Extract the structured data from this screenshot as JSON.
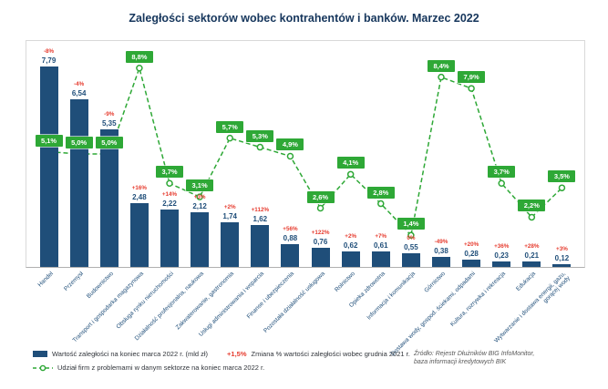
{
  "title": "Zaległości sektorów wobec kontrahentów i banków. Marzec 2022",
  "chart_data": {
    "type": "bar",
    "categories": [
      "Handel",
      "Przemysł",
      "Budownictwo",
      "Transport i gospodarka magazynowa",
      "Obsługa rynku nieruchomości",
      "Działalność profesjonalna, naukowa",
      "Zakwaterowanie, gastronomia",
      "Usługi administrowania i wsparcia",
      "Finanse i ubezpieczenia",
      "Pozostała działalność usługowa",
      "Rolnictwo",
      "Opieka zdrowotna",
      "Informacja i komunikacja",
      "Górnictwo",
      "Dostawa wody, gospod. ściekami, odpadami",
      "Kultura, rozrywka i rekreacja",
      "Edukacja",
      "Wytwarzanie i dostawa energii, gazu, gorącej wody"
    ],
    "series": [
      {
        "name": "Wartość zaległości na koniec marca 2022 r. (mld zł)",
        "type": "bar",
        "values": [
          7.79,
          6.54,
          5.35,
          2.48,
          2.22,
          2.12,
          1.74,
          1.62,
          0.88,
          0.76,
          0.62,
          0.61,
          0.55,
          0.38,
          0.28,
          0.23,
          0.21,
          0.12
        ],
        "labels": [
          "7,79",
          "6,54",
          "5,35",
          "2,48",
          "2,22",
          "2,12",
          "1,74",
          "1,62",
          "0,88",
          "0,76",
          "0,62",
          "0,61",
          "0,55",
          "0,38",
          "0,28",
          "0,23",
          "0,21",
          "0,12"
        ]
      },
      {
        "name": "Zmiana % wartości zaległości wobec grudnia 2021 r.",
        "type": "annotation",
        "labels": [
          "-8%",
          "-4%",
          "-9%",
          "+16%",
          "+14%",
          "+3%",
          "+2%",
          "+112%",
          "+56%",
          "+122%",
          "+2%",
          "+7%",
          "0%",
          "-49%",
          "+20%",
          "+36%",
          "+28%",
          "+3%"
        ]
      },
      {
        "name": "Udział firm z problemami w danym sektorze na koniec marca 2022 r.",
        "type": "line",
        "values": [
          5.1,
          5.0,
          5.0,
          8.8,
          3.7,
          3.1,
          5.7,
          5.3,
          4.9,
          2.6,
          4.1,
          2.8,
          1.4,
          8.4,
          7.9,
          3.7,
          2.2,
          3.5
        ],
        "labels": [
          "5,1%",
          "5,0%",
          "5,0%",
          "8,8%",
          "3,7%",
          "3,1%",
          "5,7%",
          "5,3%",
          "4,9%",
          "2,6%",
          "4,1%",
          "2,8%",
          "1,4%",
          "8,4%",
          "7,9%",
          "3,7%",
          "2,2%",
          "3,5%"
        ]
      }
    ],
    "bar_axis_max": 8.8,
    "pct_axis_max": 10,
    "grid": false,
    "legend_position": "bottom-left"
  },
  "legend": {
    "bar_label": "Wartość zaległości na koniec marca 2022 r. (mld zł)",
    "change_sample": "+1,5%",
    "change_label": "Zmiana % wartości zaległości wobec grudnia 2021 r.",
    "line_label": "Udział firm z problemami w danym sektorze na koniec marca 2022 r."
  },
  "source": {
    "line1": "Źródło: Rejestr Dłużników BIG InfoMonitor,",
    "line2": "baza informacji kredytowych BIK"
  },
  "colors": {
    "bar": "#1f4e79",
    "line": "#2ea836",
    "chg": "#e63b2e",
    "title": "#16365c",
    "frame": "#d9d9d9",
    "source": "#595959"
  }
}
